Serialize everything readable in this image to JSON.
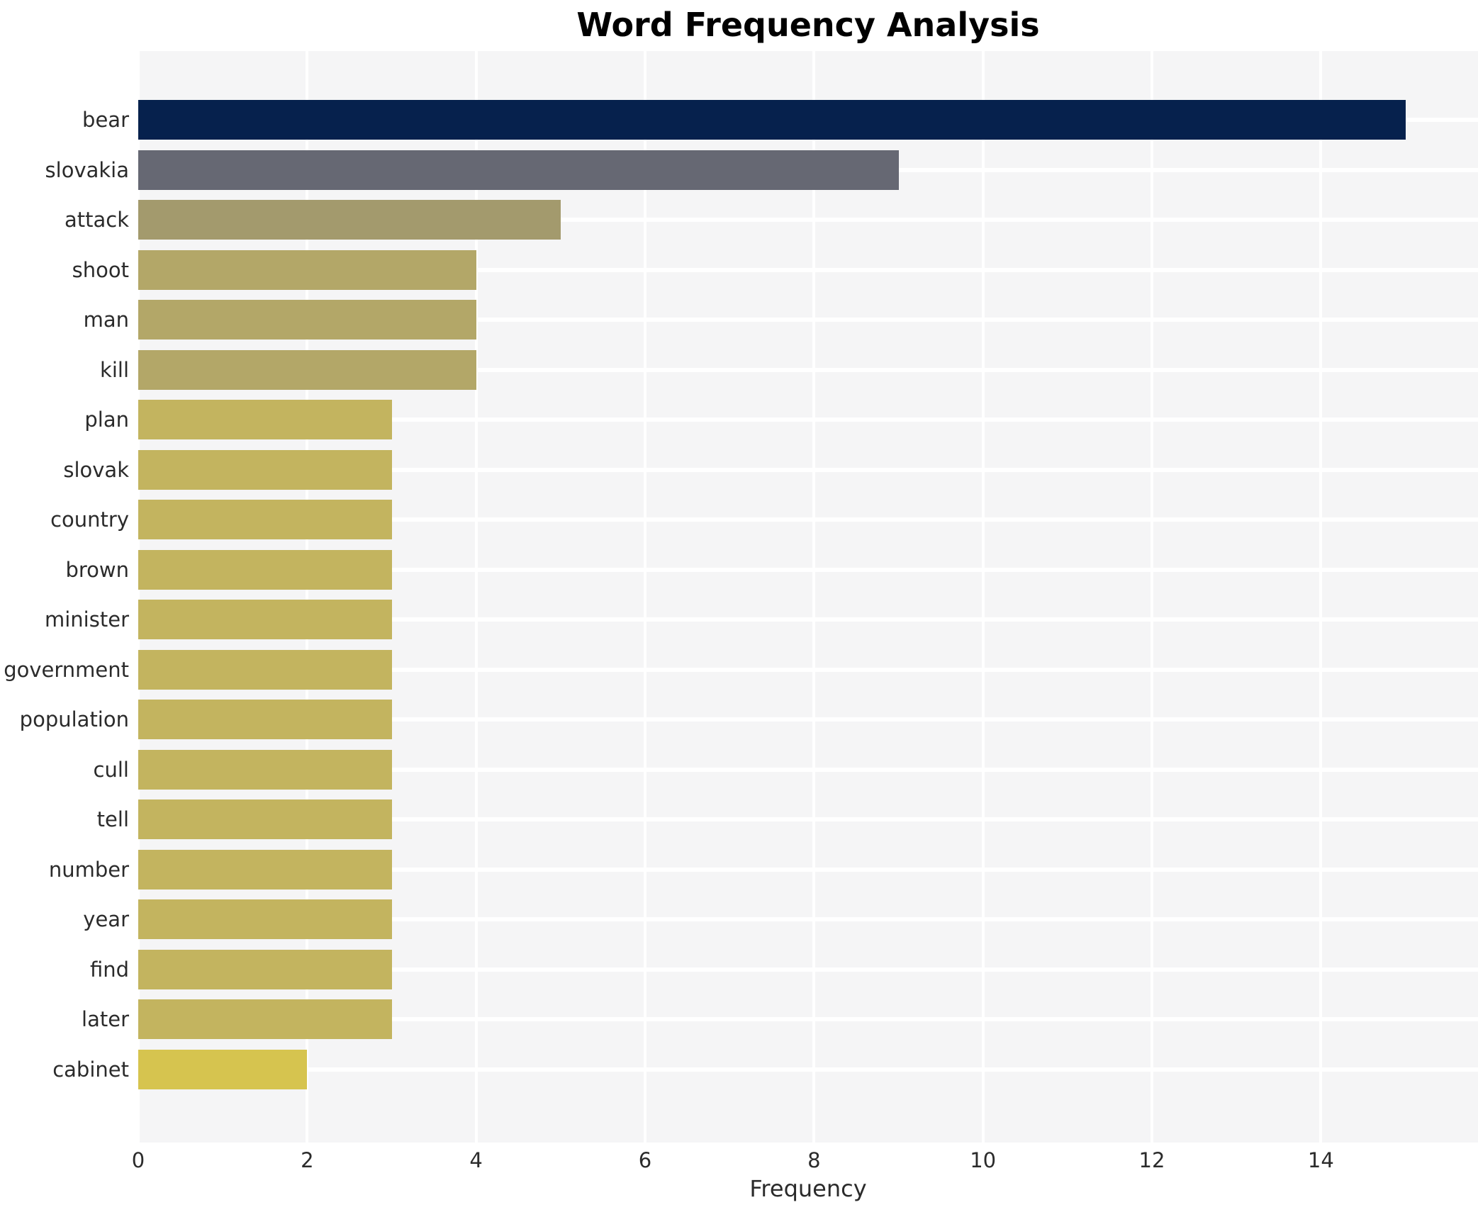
{
  "chart_data": {
    "type": "bar",
    "orientation": "horizontal",
    "title": "Word Frequency Analysis",
    "xlabel": "Frequency",
    "ylabel": "",
    "categories": [
      "bear",
      "slovakia",
      "attack",
      "shoot",
      "man",
      "kill",
      "plan",
      "slovak",
      "country",
      "brown",
      "minister",
      "government",
      "population",
      "cull",
      "tell",
      "number",
      "year",
      "find",
      "later",
      "cabinet"
    ],
    "values": [
      15,
      9,
      5,
      4,
      4,
      4,
      3,
      3,
      3,
      3,
      3,
      3,
      3,
      3,
      3,
      3,
      3,
      3,
      3,
      2
    ],
    "bar_colors": [
      "#06214d",
      "#666873",
      "#a39a6d",
      "#b3a768",
      "#b3a768",
      "#b3a768",
      "#c3b45f",
      "#c3b45f",
      "#c3b45f",
      "#c3b45f",
      "#c3b45f",
      "#c3b45f",
      "#c3b45f",
      "#c3b45f",
      "#c3b45f",
      "#c3b45f",
      "#c3b45f",
      "#c3b45f",
      "#c3b45f",
      "#d6c44f"
    ],
    "xlim": [
      0,
      15.86
    ],
    "xticks": [
      0,
      2,
      4,
      6,
      8,
      10,
      12,
      14
    ],
    "grid": "white vertical lines at even ticks and white horizontal lines at category centers, on light gray plot background",
    "legend": "none",
    "colors": {
      "figure_bg": "#ffffff",
      "plot_bg": "#f5f5f6",
      "gridline": "#ffffff",
      "title_text": "#000000",
      "tick_text": "#2b2b2b"
    }
  }
}
